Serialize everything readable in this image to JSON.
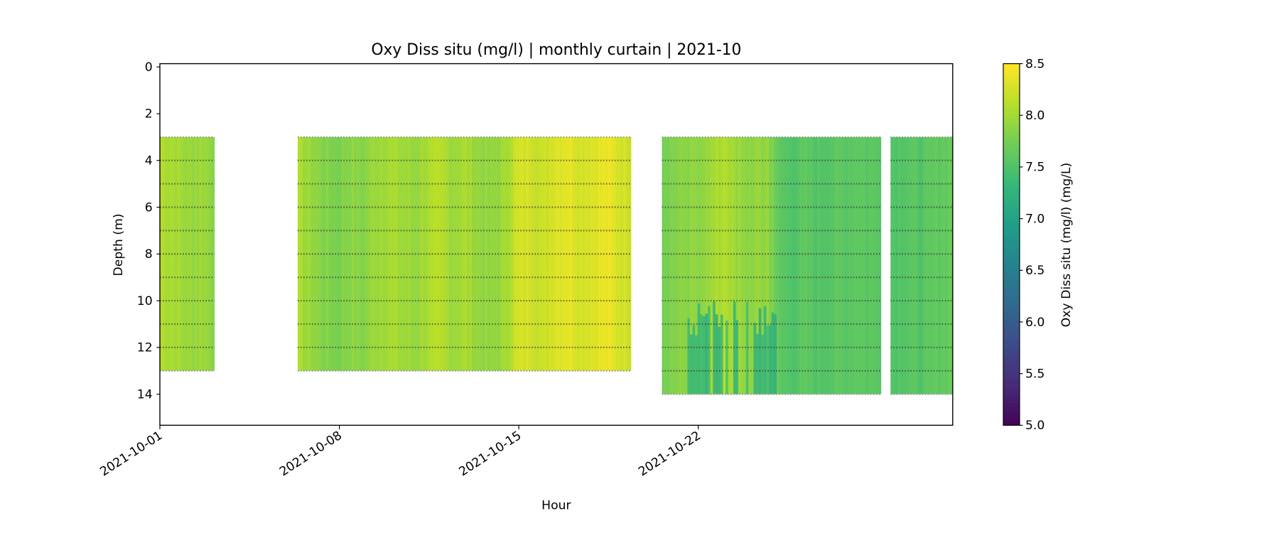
{
  "chart_data": {
    "type": "heatmap",
    "title": "Oxy Diss situ (mg/l) | monthly curtain | 2021-10",
    "xlabel": "Hour",
    "ylabel": "Depth (m)",
    "colorbar_label": "Oxy Diss situ (mg/l) (mg/L)",
    "colormap": "viridis",
    "color_range": [
      5.0,
      8.5
    ],
    "colorbar_ticks": [
      "5.0",
      "5.5",
      "6.0",
      "6.5",
      "7.0",
      "7.5",
      "8.0",
      "8.5"
    ],
    "x_ticks": [
      "2021-10-01",
      "2021-10-08",
      "2021-10-15",
      "2021-10-22"
    ],
    "x_range": [
      "2021-10-01 00:00",
      "2021-10-31 22:00"
    ],
    "y_ticks": [
      "0",
      "2",
      "4",
      "6",
      "8",
      "10",
      "12",
      "14"
    ],
    "y_range": [
      15.3,
      -0.1
    ],
    "y_inverted": true,
    "sensor_depths_m": [
      3,
      4,
      5,
      6,
      7,
      8,
      9,
      10,
      11,
      12,
      13,
      14
    ],
    "segments": [
      {
        "start": "2021-10-01 00:00",
        "end": "2021-10-03 03:00",
        "depth_top": 3,
        "depth_bottom": 13,
        "values": [
          8.1,
          8.05,
          7.95,
          8.0,
          7.9
        ]
      },
      {
        "start": "2021-10-06 09:00",
        "end": "2021-10-19 09:00",
        "depth_top": 3,
        "depth_bottom": 13,
        "values": [
          8.05,
          7.95,
          7.85,
          7.8,
          7.9,
          7.85,
          8.0,
          8.05,
          8.0,
          7.95,
          8.05,
          8.1,
          8.0,
          8.05,
          7.95,
          7.9,
          8.0,
          8.25,
          8.3,
          8.2,
          8.35,
          8.4,
          8.3,
          8.35,
          8.4,
          8.3,
          8.25
        ]
      },
      {
        "start": "2021-10-20 14:00",
        "end": "2021-10-29 03:00",
        "depth_top": 3,
        "depth_bottom": 14,
        "values": [
          7.8,
          7.85,
          7.9,
          7.85,
          8.05,
          8.1,
          7.95,
          7.9,
          7.95,
          7.6,
          7.55,
          7.6,
          7.55,
          7.6,
          7.6,
          7.65,
          7.6,
          7.65
        ]
      },
      {
        "start": "2021-10-29 12:00",
        "end": "2021-10-31 22:00",
        "depth_top": 3,
        "depth_bottom": 14,
        "values": [
          7.55,
          7.6,
          7.55,
          7.65,
          7.7
        ]
      }
    ],
    "deep_layer": {
      "start": "2021-10-21 12:00",
      "end": "2021-10-25 00:00",
      "depth_top": 11,
      "depth_bottom": 14,
      "value": 7.25
    }
  }
}
